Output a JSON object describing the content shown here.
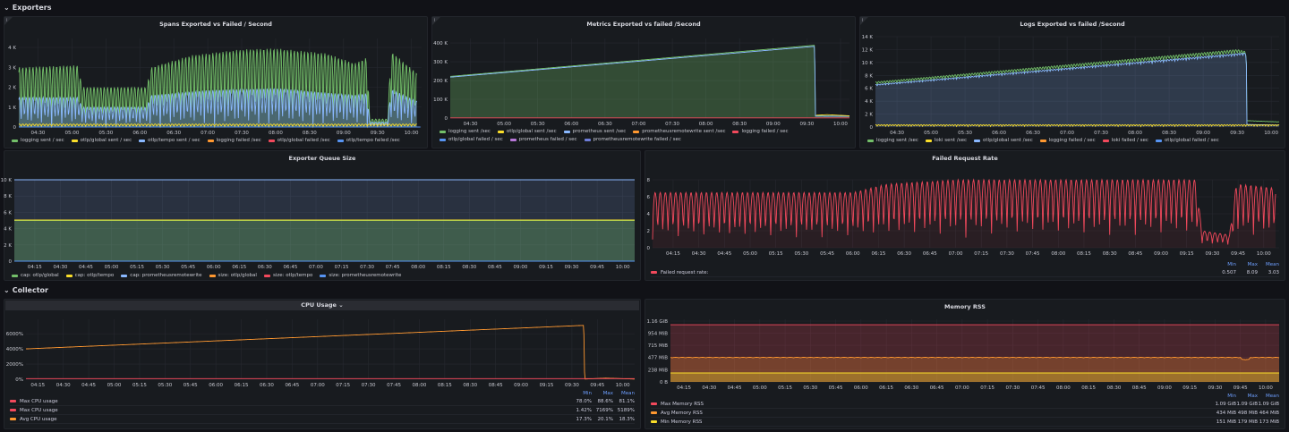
{
  "rows": {
    "exporters": "Exporters",
    "collector": "Collector"
  },
  "colors": {
    "green": "#73bf69",
    "yellow": "#fade2a",
    "blue": "#8ab8ff",
    "orange": "#ff9830",
    "red": "#f2495c",
    "darkblue": "#5794f2",
    "purple": "#b877d9",
    "indigo": "#6e7dd9"
  },
  "panels": {
    "spans": {
      "title": "Spans Exported vs Failed / Second",
      "xrange": [
        "04:13",
        "10:09"
      ],
      "ylim": [
        0,
        4450
      ],
      "yticks": [
        [
          0,
          "0"
        ],
        [
          1000,
          "1 K"
        ],
        [
          2000,
          "2 K"
        ],
        [
          3000,
          "3 K"
        ],
        [
          4000,
          "4 K"
        ]
      ],
      "xticks": [
        "04:30",
        "05:00",
        "05:30",
        "06:00",
        "06:30",
        "07:00",
        "07:30",
        "08:00",
        "08:30",
        "09:00",
        "09:30",
        "10:00"
      ],
      "legend": [
        [
          "logging sent / sec",
          "green"
        ],
        [
          "otlp/global sent / sec",
          "yellow"
        ],
        [
          "otlp/tempo sent / sec",
          "blue"
        ],
        [
          "logging failed /sec",
          "orange"
        ],
        [
          "otlp/global failed /sec",
          "red"
        ],
        [
          "otlp/tempo failed /sec",
          "darkblue"
        ]
      ],
      "series": [
        {
          "color": "green",
          "fill": 0.25,
          "osc": [
            3,
            1
          ],
          "env": [
            [
              "04:13",
              3000
            ],
            [
              "05:05",
              3100
            ],
            [
              "05:09",
              2000
            ],
            [
              "06:06",
              2000
            ],
            [
              "06:10",
              3000
            ],
            [
              "06:45",
              3600
            ],
            [
              "07:30",
              3900
            ],
            [
              "08:00",
              3950
            ],
            [
              "08:45",
              3700
            ],
            [
              "09:10",
              3200
            ],
            [
              "09:21",
              3500
            ],
            [
              "09:23",
              400
            ],
            [
              "09:39",
              400
            ],
            [
              "09:42",
              3800
            ],
            [
              "10:05",
              2700
            ]
          ]
        },
        {
          "color": "blue",
          "fill": 0.3,
          "osc": [
            3,
            1
          ],
          "env": [
            [
              "04:13",
              1500
            ],
            [
              "05:05",
              1500
            ],
            [
              "05:09",
              1000
            ],
            [
              "06:06",
              1000
            ],
            [
              "06:10",
              1600
            ],
            [
              "07:00",
              1850
            ],
            [
              "08:00",
              1950
            ],
            [
              "09:10",
              1600
            ],
            [
              "09:21",
              1700
            ],
            [
              "09:23",
              250
            ],
            [
              "09:39",
              250
            ],
            [
              "09:42",
              1900
            ],
            [
              "10:05",
              1300
            ]
          ]
        },
        {
          "color": "yellow",
          "fill": 0,
          "osc": [
            3,
            1
          ],
          "env": [
            [
              "04:13",
              150
            ],
            [
              "10:05",
              150
            ]
          ]
        },
        {
          "color": "darkblue",
          "fill": 0,
          "env": [
            [
              "04:13",
              0
            ],
            [
              "10:08",
              0
            ]
          ]
        }
      ]
    },
    "metrics": {
      "title": "Metrics Exported vs failed /Second",
      "xrange": [
        "04:12",
        "10:08"
      ],
      "ylim": [
        0,
        424000
      ],
      "yticks": [
        [
          0,
          "0"
        ],
        [
          100000,
          "100 K"
        ],
        [
          200000,
          "200 K"
        ],
        [
          300000,
          "300 K"
        ],
        [
          400000,
          "400 K"
        ]
      ],
      "xticks": [
        "04:30",
        "05:00",
        "05:30",
        "06:00",
        "06:30",
        "07:00",
        "07:30",
        "08:00",
        "08:30",
        "09:00",
        "09:30",
        "10:00"
      ],
      "legend": [
        [
          "logging sent /sec",
          "green"
        ],
        [
          "otlp/global sent /sec",
          "yellow"
        ],
        [
          "prometheus sent /sec",
          "blue"
        ],
        [
          "prometheusremotewrite sent /sec",
          "orange"
        ],
        [
          "logging failed / sec",
          "red"
        ],
        [
          "otlp/global failed / sec",
          "darkblue"
        ],
        [
          "prometheus failed / sec",
          "purple"
        ],
        [
          "prometheusremotewrite failed / sec",
          "indigo"
        ]
      ],
      "series": [
        {
          "color": "green",
          "fill": 0.3,
          "env": [
            [
              "04:12",
              222000
            ],
            [
              "09:37",
              388000
            ],
            [
              "09:37.5",
              12000
            ],
            [
              "10:08",
              10000
            ]
          ]
        },
        {
          "color": "blue",
          "fill": 0,
          "env": [
            [
              "04:12",
              218000
            ],
            [
              "09:37",
              382000
            ],
            [
              "09:37.5",
              10000
            ],
            [
              "10:08",
              9000
            ]
          ]
        },
        {
          "color": "yellow",
          "fill": 0,
          "env": [
            [
              "09:38",
              15000
            ],
            [
              "09:48",
              18000
            ],
            [
              "10:08",
              12000
            ]
          ]
        },
        {
          "color": "red",
          "fill": 0,
          "env": [
            [
              "04:12",
              1000
            ],
            [
              "10:08",
              1000
            ]
          ]
        }
      ]
    },
    "logs": {
      "title": "Logs Exported vs failed /Second",
      "xrange": [
        "04:11",
        "10:07"
      ],
      "ylim": [
        0,
        14000
      ],
      "yticks": [
        [
          0,
          "0"
        ],
        [
          2000,
          "2 K"
        ],
        [
          4000,
          "4 K"
        ],
        [
          6000,
          "6 K"
        ],
        [
          8000,
          "8 K"
        ],
        [
          10000,
          "10 K"
        ],
        [
          12000,
          "12 K"
        ],
        [
          14000,
          "14 K"
        ]
      ],
      "xticks": [
        "04:30",
        "05:00",
        "05:30",
        "06:00",
        "06:30",
        "07:00",
        "07:30",
        "08:00",
        "08:30",
        "09:00",
        "09:30",
        "10:00"
      ],
      "legend": [
        [
          "logging sent /sec",
          "green"
        ],
        [
          "loki sent /sec",
          "yellow"
        ],
        [
          "otlp/global sent /sec",
          "blue"
        ],
        [
          "logging failed / sec",
          "orange"
        ],
        [
          "loki failed / sec",
          "red"
        ],
        [
          "otlp/global failed / sec",
          "darkblue"
        ]
      ],
      "series": [
        {
          "color": "green",
          "fill": 0,
          "osc": [
            2.5,
            0.07
          ],
          "env": [
            [
              "04:11",
              7000
            ],
            [
              "09:30",
              12000
            ],
            [
              "09:38",
              11700
            ],
            [
              "09:38.5",
              1000
            ],
            [
              "10:07",
              800
            ]
          ]
        },
        {
          "color": "blue",
          "fill": 0.2,
          "osc": [
            2.5,
            0.04
          ],
          "env": [
            [
              "04:11",
              6600
            ],
            [
              "09:38",
              11500
            ],
            [
              "09:38.5",
              400
            ],
            [
              "10:07",
              300
            ]
          ]
        },
        {
          "color": "yellow",
          "fill": 0,
          "osc": [
            2.5,
            0.8
          ],
          "env": [
            [
              "04:11",
              350
            ],
            [
              "10:07",
              350
            ]
          ]
        }
      ]
    },
    "queue": {
      "title": "Exporter Queue Size",
      "xrange": [
        "04:03",
        "10:07"
      ],
      "ylim": [
        0,
        10000
      ],
      "yticks": [
        [
          0,
          "0"
        ],
        [
          2000,
          "2 K"
        ],
        [
          4000,
          "4 K"
        ],
        [
          6000,
          "6 K"
        ],
        [
          8000,
          "8 K"
        ],
        [
          10000,
          "10 K"
        ]
      ],
      "xticks": [
        "04:15",
        "04:30",
        "04:45",
        "05:00",
        "05:15",
        "05:30",
        "05:45",
        "06:00",
        "06:15",
        "06:30",
        "06:45",
        "07:00",
        "07:15",
        "07:30",
        "07:45",
        "08:00",
        "08:15",
        "08:30",
        "08:45",
        "09:00",
        "09:15",
        "09:30",
        "09:45",
        "10:00"
      ],
      "legend": [
        [
          "cap: otlp/global",
          "green"
        ],
        [
          "cap: otlp/tempo",
          "yellow"
        ],
        [
          "cap: prometheusremotewrite",
          "blue"
        ],
        [
          "size: otlp/global",
          "orange"
        ],
        [
          "size: otlp/tempo",
          "red"
        ],
        [
          "size: prometheusremotewrite",
          "darkblue"
        ]
      ],
      "series": [
        {
          "color": "blue",
          "fill": 0.15,
          "env": [
            [
              "04:03",
              10000
            ],
            [
              "10:07",
              10000
            ]
          ]
        },
        {
          "color": "green",
          "fill": 0.3,
          "env": [
            [
              "04:03",
              5000
            ],
            [
              "10:07",
              5000
            ]
          ]
        },
        {
          "color": "yellow",
          "fill": 0,
          "env": [
            [
              "04:03",
              5050
            ],
            [
              "10:07",
              5050
            ]
          ]
        },
        {
          "color": "darkblue",
          "fill": 0,
          "env": [
            [
              "04:03",
              0
            ],
            [
              "10:07",
              0
            ]
          ]
        }
      ]
    },
    "failed": {
      "title": "Failed Request Rate",
      "xrange": [
        "04:03",
        "10:09"
      ],
      "ylim": [
        0,
        8
      ],
      "yticks": [
        [
          0,
          "0"
        ],
        [
          2,
          "2"
        ],
        [
          4,
          "4"
        ],
        [
          6,
          "6"
        ],
        [
          8,
          "8"
        ]
      ],
      "xticks": [
        "04:15",
        "04:30",
        "04:45",
        "05:00",
        "05:15",
        "05:30",
        "05:45",
        "06:00",
        "06:15",
        "06:30",
        "06:45",
        "07:00",
        "07:15",
        "07:30",
        "07:45",
        "08:00",
        "08:15",
        "08:30",
        "08:45",
        "09:00",
        "09:15",
        "09:30",
        "09:45",
        "10:00"
      ],
      "stat_headers": [
        "Min",
        "Max",
        "Mean"
      ],
      "stat_rows": [
        {
          "name": "Failed request rate:",
          "color": "red",
          "min": "0.507",
          "max": "8.09",
          "mean": "3.03"
        }
      ],
      "series": [
        {
          "color": "red",
          "fill": 0.08,
          "osc": [
            3,
            0.85
          ],
          "env": [
            [
              "04:03",
              6.5
            ],
            [
              "06:00",
              6.5
            ],
            [
              "06:20",
              7.5
            ],
            [
              "07:00",
              8
            ],
            [
              "09:20",
              8
            ],
            [
              "09:24",
              2
            ],
            [
              "09:40",
              1.5
            ],
            [
              "09:44",
              7.5
            ],
            [
              "10:07",
              7
            ]
          ]
        }
      ]
    },
    "cpu": {
      "title": "CPU Usage",
      "xrange": [
        "04:08",
        "10:07"
      ],
      "ylim": [
        0,
        7900
      ],
      "yticks": [
        [
          0,
          "0%"
        ],
        [
          2000,
          "2000%"
        ],
        [
          4000,
          "4000%"
        ],
        [
          6000,
          "6000%"
        ]
      ],
      "xticks": [
        "04:15",
        "04:30",
        "04:45",
        "05:00",
        "05:15",
        "05:30",
        "05:45",
        "06:00",
        "06:15",
        "06:30",
        "06:45",
        "07:00",
        "07:15",
        "07:30",
        "07:45",
        "08:00",
        "08:15",
        "08:30",
        "08:45",
        "09:00",
        "09:15",
        "09:30",
        "09:45",
        "10:00"
      ],
      "stat_headers": [
        "Min",
        "Max",
        "Mean"
      ],
      "stat_rows": [
        {
          "name": "Max CPU usage",
          "color": "red",
          "min": "78.0%",
          "max": "88.6%",
          "mean": "81.1%"
        },
        {
          "name": "Max CPU usage",
          "color": "red",
          "min": "1.42%",
          "max": "7169%",
          "mean": "5189%"
        },
        {
          "name": "Avg CPU usage",
          "color": "orange",
          "min": "17.3%",
          "max": "20.1%",
          "mean": "18.3%"
        }
      ],
      "series": [
        {
          "color": "orange",
          "fill": 0,
          "env": [
            [
              "04:08",
              4000
            ],
            [
              "09:37",
              7100
            ],
            [
              "09:37.5",
              20
            ],
            [
              "09:50",
              150
            ],
            [
              "10:07",
              20
            ]
          ]
        },
        {
          "color": "red",
          "fill": 0.2,
          "env": [
            [
              "04:08",
              80
            ],
            [
              "10:07",
              80
            ]
          ]
        }
      ]
    },
    "memory": {
      "title": "Memory RSS",
      "xrange": [
        "04:07",
        "10:08"
      ],
      "ylim": [
        0,
        1223
      ],
      "yticks": [
        [
          0,
          "0 B"
        ],
        [
          238,
          "238 MiB"
        ],
        [
          477,
          "477 MiB"
        ],
        [
          715,
          "715 MiB"
        ],
        [
          954,
          "954 MiB"
        ],
        [
          1188,
          "1.16 GiB"
        ]
      ],
      "xticks": [
        "04:15",
        "04:30",
        "04:45",
        "05:00",
        "05:15",
        "05:30",
        "05:45",
        "06:00",
        "06:15",
        "06:30",
        "06:45",
        "07:00",
        "07:15",
        "07:30",
        "07:45",
        "08:00",
        "08:15",
        "08:30",
        "08:45",
        "09:00",
        "09:15",
        "09:30",
        "09:45",
        "10:00"
      ],
      "stat_headers": [
        "Min",
        "Max",
        "Mean"
      ],
      "stat_rows": [
        {
          "name": "Max Memory RSS",
          "color": "red",
          "min": "1.09 GiB",
          "max": "1.09 GiB",
          "mean": "1.09 GiB"
        },
        {
          "name": "Avg Memory RSS",
          "color": "orange",
          "min": "434 MiB",
          "max": "498 MiB",
          "mean": "464 MiB"
        },
        {
          "name": "Min Memory RSS",
          "color": "yellow",
          "min": "151 MiB",
          "max": "179 MiB",
          "mean": "173 MiB"
        }
      ],
      "series": [
        {
          "color": "red",
          "fill": 0.22,
          "env": [
            [
              "04:07",
              1116
            ],
            [
              "10:08",
              1116
            ]
          ]
        },
        {
          "color": "orange",
          "fill": 0.25,
          "osc": [
            4,
            0.02
          ],
          "env": [
            [
              "04:07",
              480
            ],
            [
              "09:45",
              480
            ],
            [
              "09:46",
              440
            ],
            [
              "09:50",
              440
            ],
            [
              "09:51",
              480
            ],
            [
              "10:08",
              480
            ]
          ]
        },
        {
          "color": "yellow",
          "fill": 0.3,
          "env": [
            [
              "04:07",
              175
            ],
            [
              "10:08",
              175
            ]
          ]
        }
      ]
    }
  }
}
